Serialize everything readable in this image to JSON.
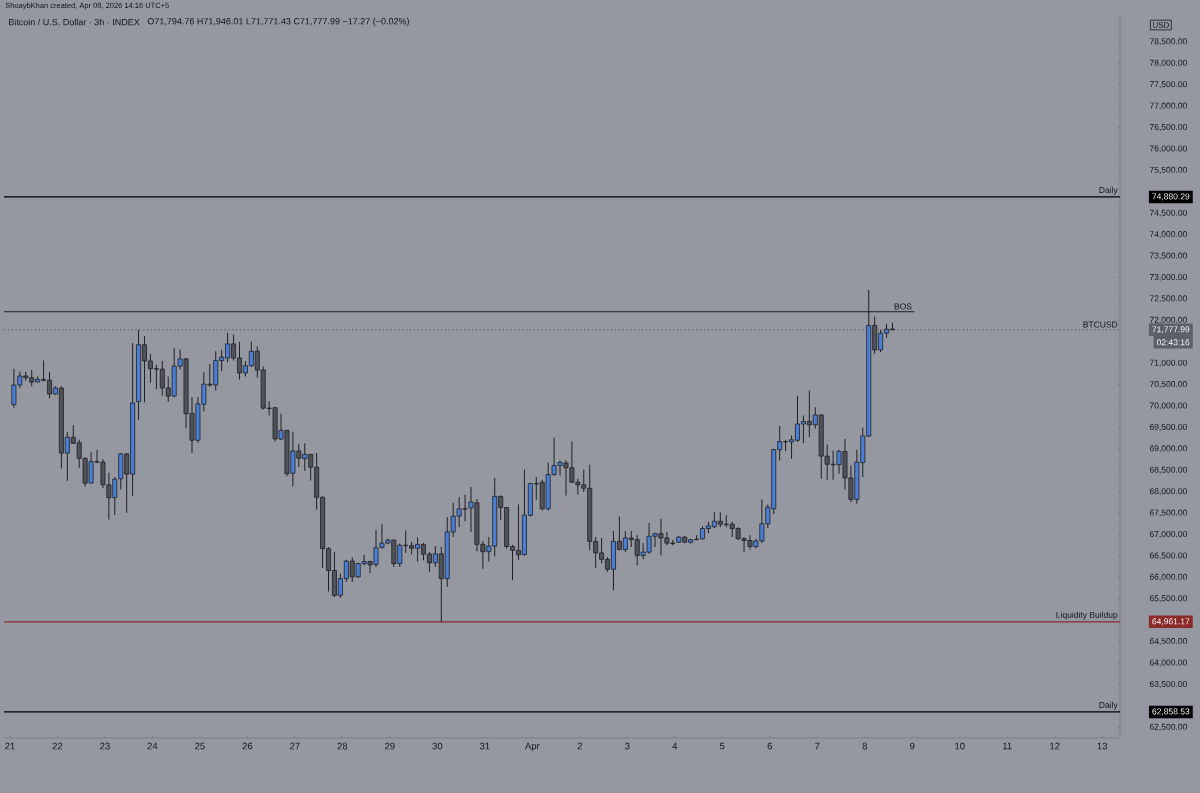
{
  "chart_data": {
    "type": "candlestick",
    "title": "Bitcoin / U.S. Dollar · 3h · INDEX",
    "subtitle": "O71,794.76 H71,946.01 L71,771.43 C71,777.99 −17.27 (−0.02%)",
    "ylabel": "USD",
    "x": [
      "2026-03-21T02:00",
      "2026-03-21T05:00",
      "2026-03-21T08:00",
      "2026-03-21T11:00",
      "2026-03-21T14:00",
      "2026-03-21T17:00",
      "2026-03-21T20:00",
      "2026-03-21T23:00",
      "2026-03-22T02:00",
      "2026-03-22T05:00",
      "2026-03-22T08:00",
      "2026-03-22T11:00",
      "2026-03-22T14:00",
      "2026-03-22T17:00",
      "2026-03-22T20:00",
      "2026-03-22T23:00",
      "2026-03-23T02:00",
      "2026-03-23T05:00",
      "2026-03-23T08:00",
      "2026-03-23T11:00",
      "2026-03-23T14:00",
      "2026-03-23T17:00",
      "2026-03-23T20:00",
      "2026-03-23T23:00",
      "2026-03-24T02:00",
      "2026-03-24T05:00",
      "2026-03-24T08:00",
      "2026-03-24T11:00",
      "2026-03-24T14:00",
      "2026-03-24T17:00",
      "2026-03-24T20:00",
      "2026-03-24T23:00",
      "2026-03-25T02:00",
      "2026-03-25T05:00",
      "2026-03-25T08:00",
      "2026-03-25T11:00",
      "2026-03-25T14:00",
      "2026-03-25T17:00",
      "2026-03-25T20:00",
      "2026-03-25T23:00",
      "2026-03-26T02:00",
      "2026-03-26T05:00",
      "2026-03-26T08:00",
      "2026-03-26T11:00",
      "2026-03-26T14:00",
      "2026-03-26T17:00",
      "2026-03-26T20:00",
      "2026-03-26T23:00",
      "2026-03-27T02:00",
      "2026-03-27T05:00",
      "2026-03-27T08:00",
      "2026-03-27T11:00",
      "2026-03-27T14:00",
      "2026-03-27T17:00",
      "2026-03-27T20:00",
      "2026-03-27T23:00",
      "2026-03-28T02:00",
      "2026-03-28T05:00",
      "2026-03-28T08:00",
      "2026-03-28T11:00",
      "2026-03-28T14:00",
      "2026-03-28T17:00",
      "2026-03-28T20:00",
      "2026-03-28T23:00",
      "2026-03-29T02:00",
      "2026-03-29T05:00",
      "2026-03-29T08:00",
      "2026-03-29T11:00",
      "2026-03-29T14:00",
      "2026-03-29T17:00",
      "2026-03-29T20:00",
      "2026-03-29T23:00",
      "2026-03-30T02:00",
      "2026-03-30T05:00",
      "2026-03-30T08:00",
      "2026-03-30T11:00",
      "2026-03-30T14:00",
      "2026-03-30T17:00",
      "2026-03-30T20:00",
      "2026-03-30T23:00",
      "2026-03-31T02:00",
      "2026-03-31T05:00",
      "2026-03-31T08:00",
      "2026-03-31T11:00",
      "2026-03-31T14:00",
      "2026-03-31T17:00",
      "2026-03-31T20:00",
      "2026-03-31T23:00",
      "2026-04-01T02:00",
      "2026-04-01T05:00",
      "2026-04-01T08:00",
      "2026-04-01T11:00",
      "2026-04-01T14:00",
      "2026-04-01T17:00",
      "2026-04-01T20:00",
      "2026-04-01T23:00",
      "2026-04-02T02:00",
      "2026-04-02T05:00",
      "2026-04-02T08:00",
      "2026-04-02T11:00",
      "2026-04-02T14:00",
      "2026-04-02T17:00",
      "2026-04-02T20:00",
      "2026-04-02T23:00",
      "2026-04-03T02:00",
      "2026-04-03T05:00",
      "2026-04-03T08:00",
      "2026-04-03T11:00",
      "2026-04-03T14:00",
      "2026-04-03T17:00",
      "2026-04-03T20:00",
      "2026-04-03T23:00",
      "2026-04-04T02:00",
      "2026-04-04T05:00",
      "2026-04-04T08:00",
      "2026-04-04T11:00",
      "2026-04-04T14:00",
      "2026-04-04T17:00",
      "2026-04-04T20:00",
      "2026-04-04T23:00",
      "2026-04-05T02:00",
      "2026-04-05T05:00",
      "2026-04-05T08:00",
      "2026-04-05T11:00",
      "2026-04-05T14:00",
      "2026-04-05T17:00",
      "2026-04-05T20:00",
      "2026-04-05T23:00",
      "2026-04-06T02:00",
      "2026-04-06T05:00",
      "2026-04-06T08:00",
      "2026-04-06T11:00",
      "2026-04-06T14:00",
      "2026-04-06T17:00",
      "2026-04-06T20:00",
      "2026-04-06T23:00",
      "2026-04-07T02:00",
      "2026-04-07T05:00",
      "2026-04-07T08:00",
      "2026-04-07T11:00",
      "2026-04-07T14:00",
      "2026-04-07T17:00",
      "2026-04-07T20:00",
      "2026-04-07T23:00",
      "2026-04-08T02:00",
      "2026-04-08T05:00",
      "2026-04-08T08:00",
      "2026-04-08T11:00",
      "2026-04-08T14:00"
    ],
    "ohlc": [
      [
        70030,
        70870,
        69960,
        70490
      ],
      [
        70490,
        70800,
        70420,
        70700
      ],
      [
        70700,
        70800,
        70590,
        70660
      ],
      [
        70660,
        70840,
        70460,
        70560
      ],
      [
        70560,
        70690,
        70550,
        70620
      ],
      [
        70620,
        71060,
        70570,
        70600
      ],
      [
        70600,
        70800,
        70180,
        70280
      ],
      [
        70280,
        70460,
        70260,
        70420
      ],
      [
        70420,
        70460,
        68540,
        68900
      ],
      [
        68900,
        69390,
        68250,
        69270
      ],
      [
        69270,
        69550,
        69120,
        69130
      ],
      [
        69140,
        69210,
        68560,
        68780
      ],
      [
        68780,
        68800,
        68120,
        68200
      ],
      [
        68200,
        68920,
        68190,
        68700
      ],
      [
        68700,
        68980,
        68670,
        68690
      ],
      [
        68690,
        68760,
        68080,
        68160
      ],
      [
        68160,
        68440,
        67350,
        67860
      ],
      [
        67860,
        68340,
        67450,
        68290
      ],
      [
        68300,
        68900,
        68050,
        68880
      ],
      [
        68880,
        68900,
        67510,
        68410
      ],
      [
        68410,
        71470,
        67900,
        70070
      ],
      [
        70100,
        71780,
        69680,
        71430
      ],
      [
        71430,
        71630,
        70090,
        71050
      ],
      [
        71050,
        71220,
        70540,
        70870
      ],
      [
        70870,
        70970,
        70390,
        70860
      ],
      [
        70860,
        71050,
        70240,
        70420
      ],
      [
        70420,
        70690,
        70100,
        70230
      ],
      [
        70230,
        71350,
        70210,
        70930
      ],
      [
        70930,
        71320,
        70850,
        71100
      ],
      [
        71100,
        71120,
        69480,
        69820
      ],
      [
        69830,
        70210,
        68900,
        69200
      ],
      [
        69200,
        70210,
        69140,
        70050
      ],
      [
        70040,
        70790,
        69870,
        70510
      ],
      [
        70510,
        70980,
        70450,
        70490
      ],
      [
        70490,
        71280,
        70360,
        71060
      ],
      [
        71060,
        71310,
        70810,
        71140
      ],
      [
        71120,
        71710,
        71020,
        71450
      ],
      [
        71450,
        71670,
        71060,
        71120
      ],
      [
        71120,
        71500,
        70620,
        70770
      ],
      [
        70770,
        71050,
        70690,
        70940
      ],
      [
        70940,
        71500,
        70910,
        71280
      ],
      [
        71280,
        71390,
        70660,
        70840
      ],
      [
        70840,
        70920,
        69920,
        69950
      ],
      [
        69950,
        70110,
        69780,
        69940
      ],
      [
        69960,
        69970,
        69170,
        69230
      ],
      [
        69230,
        69820,
        69200,
        69430
      ],
      [
        69430,
        69440,
        68360,
        68420
      ],
      [
        68430,
        69400,
        68120,
        68950
      ],
      [
        68950,
        69120,
        68570,
        68780
      ],
      [
        68770,
        69130,
        68480,
        68870
      ],
      [
        68870,
        68880,
        68260,
        68570
      ],
      [
        68570,
        68900,
        67580,
        67870
      ],
      [
        67870,
        67890,
        66220,
        66670
      ],
      [
        66670,
        66710,
        65670,
        66160
      ],
      [
        66160,
        66590,
        65540,
        65580
      ],
      [
        65580,
        66090,
        65520,
        65970
      ],
      [
        65970,
        66410,
        65890,
        66380
      ],
      [
        66380,
        66470,
        65890,
        66010
      ],
      [
        66010,
        66340,
        65990,
        66320
      ],
      [
        66320,
        66530,
        66280,
        66370
      ],
      [
        66370,
        66380,
        66100,
        66290
      ],
      [
        66300,
        67110,
        66240,
        66690
      ],
      [
        66700,
        67240,
        66670,
        66800
      ],
      [
        66800,
        66900,
        66770,
        66870
      ],
      [
        66870,
        66880,
        66240,
        66320
      ],
      [
        66320,
        66790,
        66240,
        66750
      ],
      [
        66750,
        67100,
        66570,
        66740
      ],
      [
        66740,
        66830,
        66540,
        66680
      ],
      [
        66680,
        66930,
        66370,
        66770
      ],
      [
        66770,
        66800,
        66400,
        66540
      ],
      [
        66540,
        66590,
        66130,
        66340
      ],
      [
        66340,
        66730,
        66240,
        66550
      ],
      [
        66550,
        66710,
        64960,
        65970
      ],
      [
        65970,
        67410,
        65780,
        67060
      ],
      [
        67060,
        67740,
        66940,
        67430
      ],
      [
        67430,
        67870,
        67170,
        67600
      ],
      [
        67600,
        67930,
        67310,
        67590
      ],
      [
        67620,
        68110,
        67060,
        67760
      ],
      [
        67740,
        67830,
        66610,
        66770
      ],
      [
        66770,
        66850,
        66200,
        66600
      ],
      [
        66600,
        66940,
        66370,
        66730
      ],
      [
        66730,
        68320,
        66490,
        67890
      ],
      [
        67890,
        67910,
        67340,
        67630
      ],
      [
        67630,
        67640,
        66670,
        66720
      ],
      [
        66720,
        66760,
        65930,
        66630
      ],
      [
        66630,
        67700,
        66400,
        66530
      ],
      [
        66530,
        68510,
        66510,
        67450
      ],
      [
        67450,
        68200,
        67420,
        68190
      ],
      [
        68190,
        68340,
        67810,
        68180
      ],
      [
        68220,
        68280,
        67560,
        67600
      ],
      [
        67600,
        68680,
        67560,
        68400
      ],
      [
        68400,
        69260,
        68370,
        68610
      ],
      [
        68610,
        68730,
        68380,
        68680
      ],
      [
        68670,
        68730,
        67910,
        68560
      ],
      [
        68560,
        69170,
        68200,
        68220
      ],
      [
        68220,
        68300,
        67930,
        68160
      ],
      [
        68160,
        68510,
        67990,
        68080
      ],
      [
        68080,
        68630,
        66630,
        66840
      ],
      [
        66840,
        66940,
        66220,
        66570
      ],
      [
        66570,
        66920,
        66330,
        66420
      ],
      [
        66420,
        66470,
        66130,
        66190
      ],
      [
        66190,
        67080,
        65700,
        66840
      ],
      [
        66840,
        67420,
        66630,
        66650
      ],
      [
        66650,
        67080,
        66590,
        66920
      ],
      [
        66920,
        67080,
        66710,
        66880
      ],
      [
        66880,
        66980,
        66280,
        66510
      ],
      [
        66510,
        66800,
        66420,
        66590
      ],
      [
        66590,
        67270,
        66550,
        66960
      ],
      [
        66960,
        67040,
        66710,
        67020
      ],
      [
        67020,
        67370,
        66510,
        66920
      ],
      [
        66920,
        67060,
        66750,
        66800
      ],
      [
        66800,
        66880,
        66750,
        66790
      ],
      [
        66820,
        66960,
        66800,
        66940
      ],
      [
        66940,
        66960,
        66800,
        66820
      ],
      [
        66820,
        66890,
        66790,
        66880
      ],
      [
        66890,
        66980,
        66870,
        66880
      ],
      [
        66900,
        67190,
        66880,
        67140
      ],
      [
        67140,
        67290,
        67030,
        67200
      ],
      [
        67180,
        67520,
        67150,
        67310
      ],
      [
        67310,
        67520,
        67170,
        67240
      ],
      [
        67240,
        67450,
        67170,
        67230
      ],
      [
        67240,
        67300,
        66940,
        67140
      ],
      [
        67140,
        67170,
        66880,
        66900
      ],
      [
        66900,
        66940,
        66590,
        66860
      ],
      [
        66860,
        66980,
        66650,
        66720
      ],
      [
        66720,
        66900,
        66680,
        66850
      ],
      [
        66850,
        67820,
        66800,
        67250
      ],
      [
        67250,
        67700,
        67150,
        67640
      ],
      [
        67600,
        69000,
        67480,
        68980
      ],
      [
        68980,
        69530,
        68730,
        69170
      ],
      [
        69170,
        69210,
        68950,
        69160
      ],
      [
        69160,
        69310,
        68770,
        69210
      ],
      [
        69200,
        70240,
        69160,
        69580
      ],
      [
        69580,
        69780,
        69130,
        69640
      ],
      [
        69640,
        70360,
        69270,
        69560
      ],
      [
        69560,
        69970,
        69470,
        69790
      ],
      [
        69790,
        69800,
        68300,
        68830
      ],
      [
        68830,
        69100,
        68280,
        68640
      ],
      [
        68640,
        68960,
        68280,
        68630
      ],
      [
        68630,
        68980,
        68420,
        68940
      ],
      [
        68940,
        69230,
        68050,
        68320
      ],
      [
        68320,
        68610,
        67760,
        67820
      ],
      [
        67820,
        68980,
        67720,
        68690
      ],
      [
        68680,
        69500,
        68340,
        69300
      ],
      [
        69300,
        72710,
        69270,
        71880
      ],
      [
        71880,
        72090,
        71220,
        71310
      ],
      [
        71310,
        71780,
        71260,
        71700
      ],
      [
        71700,
        71920,
        71590,
        71790
      ],
      [
        71794.76,
        71946.01,
        71771.43,
        71777.99
      ]
    ],
    "colors": [
      "#4b7fd5",
      "#4b7fd5",
      "#505259",
      "#505259",
      "#4b7fd5",
      "#505259",
      "#505259",
      "#4b7fd5",
      "#505259",
      "#4b7fd5",
      "#505259",
      "#505259",
      "#505259",
      "#4b7fd5",
      "#505259",
      "#505259",
      "#505259",
      "#4b7fd5",
      "#4b7fd5",
      "#505259",
      "#4b7fd5",
      "#4b7fd5",
      "#505259",
      "#505259",
      "#505259",
      "#505259",
      "#505259",
      "#4b7fd5",
      "#4b7fd5",
      "#505259",
      "#505259",
      "#4b7fd5",
      "#4b7fd5",
      "#505259",
      "#4b7fd5",
      "#4b7fd5",
      "#4b7fd5",
      "#505259",
      "#505259",
      "#4b7fd5",
      "#4b7fd5",
      "#505259",
      "#505259",
      "#505259",
      "#505259",
      "#4b7fd5",
      "#505259",
      "#4b7fd5",
      "#505259",
      "#4b7fd5",
      "#505259",
      "#505259",
      "#505259",
      "#505259",
      "#505259",
      "#4b7fd5",
      "#4b7fd5",
      "#505259",
      "#4b7fd5",
      "#4b7fd5",
      "#505259",
      "#4b7fd5",
      "#4b7fd5",
      "#4b7fd5",
      "#505259",
      "#4b7fd5",
      "#505259",
      "#505259",
      "#4b7fd5",
      "#505259",
      "#505259",
      "#4b7fd5",
      "#505259",
      "#4b7fd5",
      "#4b7fd5",
      "#4b7fd5",
      "#505259",
      "#4b7fd5",
      "#505259",
      "#505259",
      "#4b7fd5",
      "#4b7fd5",
      "#505259",
      "#505259",
      "#505259",
      "#505259",
      "#4b7fd5",
      "#4b7fd5",
      "#505259",
      "#505259",
      "#4b7fd5",
      "#4b7fd5",
      "#4b7fd5",
      "#505259",
      "#505259",
      "#505259",
      "#505259",
      "#505259",
      "#505259",
      "#505259",
      "#505259",
      "#4b7fd5",
      "#505259",
      "#4b7fd5",
      "#505259",
      "#505259",
      "#4b7fd5",
      "#4b7fd5",
      "#4b7fd5",
      "#505259",
      "#505259",
      "#505259",
      "#4b7fd5",
      "#505259",
      "#4b7fd5",
      "#505259",
      "#4b7fd5",
      "#4b7fd5",
      "#4b7fd5",
      "#505259",
      "#505259",
      "#505259",
      "#505259",
      "#505259",
      "#505259",
      "#4b7fd5",
      "#4b7fd5",
      "#4b7fd5",
      "#4b7fd5",
      "#4b7fd5",
      "#505259",
      "#4b7fd5",
      "#4b7fd5",
      "#4b7fd5",
      "#505259",
      "#4b7fd5",
      "#505259",
      "#505259",
      "#505259",
      "#4b7fd5",
      "#505259",
      "#505259",
      "#4b7fd5",
      "#4b7fd5",
      "#4b7fd5",
      "#505259",
      "#4b7fd5",
      "#4b7fd5",
      "#505259"
    ],
    "series": [
      {
        "type": "line",
        "name": "BOS",
        "x": [
          "2026-03-20T21:00",
          "2026-04-09T01:00"
        ],
        "values": [
          72200,
          72200
        ],
        "color": "#1e1e1e"
      }
    ],
    "xlim": [
      "2026-03-20T21:00",
      "2026-04-13T09:00"
    ],
    "xticks": [
      {
        "value": "2026-03-21",
        "label": "21"
      },
      {
        "value": "2026-03-22",
        "label": "22"
      },
      {
        "value": "2026-03-23",
        "label": "23"
      },
      {
        "value": "2026-03-24",
        "label": "24"
      },
      {
        "value": "2026-03-25",
        "label": "25"
      },
      {
        "value": "2026-03-26",
        "label": "26"
      },
      {
        "value": "2026-03-27",
        "label": "27"
      },
      {
        "value": "2026-03-28",
        "label": "28"
      },
      {
        "value": "2026-03-29",
        "label": "29"
      },
      {
        "value": "2026-03-30",
        "label": "30"
      },
      {
        "value": "2026-03-31",
        "label": "31"
      },
      {
        "value": "2026-04-01",
        "label": "Apr"
      },
      {
        "value": "2026-04-02",
        "label": "2"
      },
      {
        "value": "2026-04-03",
        "label": "3"
      },
      {
        "value": "2026-04-04",
        "label": "4"
      },
      {
        "value": "2026-04-05",
        "label": "5"
      },
      {
        "value": "2026-04-06",
        "label": "6"
      },
      {
        "value": "2026-04-07",
        "label": "7"
      },
      {
        "value": "2026-04-08",
        "label": "8"
      },
      {
        "value": "2026-04-09",
        "label": "9"
      },
      {
        "value": "2026-04-10",
        "label": "10"
      },
      {
        "value": "2026-04-11",
        "label": "11"
      },
      {
        "value": "2026-04-12",
        "label": "12"
      },
      {
        "value": "2026-04-13",
        "label": "13"
      }
    ],
    "ylim": [
      62250,
      79150
    ],
    "yticks": [
      {
        "value": 62500,
        "label": "62,500.00"
      },
      {
        "value": 63500,
        "label": "63,500.00"
      },
      {
        "value": 64000,
        "label": "64,000.00"
      },
      {
        "value": 64500,
        "label": "64,500.00"
      },
      {
        "value": 65500,
        "label": "65,500.00"
      },
      {
        "value": 66000,
        "label": "66,000.00"
      },
      {
        "value": 66500,
        "label": "66,500.00"
      },
      {
        "value": 67000,
        "label": "67,000.00"
      },
      {
        "value": 67500,
        "label": "67,500.00"
      },
      {
        "value": 68000,
        "label": "68,000.00"
      },
      {
        "value": 68500,
        "label": "68,500.00"
      },
      {
        "value": 69000,
        "label": "69,000.00"
      },
      {
        "value": 69500,
        "label": "69,500.00"
      },
      {
        "value": 70000,
        "label": "70,000.00"
      },
      {
        "value": 70500,
        "label": "70,500.00"
      },
      {
        "value": 71000,
        "label": "71,000.00"
      },
      {
        "value": 72000,
        "label": "72,000.00"
      },
      {
        "value": 72500,
        "label": "72,500.00"
      },
      {
        "value": 73000,
        "label": "73,000.00"
      },
      {
        "value": 73500,
        "label": "73,500.00"
      },
      {
        "value": 74000,
        "label": "74,000.00"
      },
      {
        "value": 74500,
        "label": "74,500.00"
      },
      {
        "value": 75500,
        "label": "75,500.00"
      },
      {
        "value": 76000,
        "label": "76,000.00"
      },
      {
        "value": 76500,
        "label": "76,500.00"
      },
      {
        "value": 77000,
        "label": "77,000.00"
      },
      {
        "value": 77500,
        "label": "77,500.00"
      },
      {
        "value": 78000,
        "label": "78,000.00"
      },
      {
        "value": 78500,
        "label": "78,500.00"
      }
    ],
    "ref_lines": [
      {
        "axis": "y",
        "value": 74880.29,
        "label": "Daily",
        "color": "#000000"
      },
      {
        "axis": "y",
        "value": 71777.99,
        "label": "BTCUSD",
        "color": "#5d606b",
        "line_style": "dotted"
      },
      {
        "axis": "y",
        "value": 64961.17,
        "label": "Liquidity Buildup",
        "color": "#8c2a2a"
      },
      {
        "axis": "y",
        "value": 62858.53,
        "label": "Daily",
        "color": "#000000"
      }
    ],
    "annotations": [
      "ShoaybKhan created, Apr 08, 2026 14:16 UTC+5",
      "74,880.29",
      "71,777.99",
      "02:43:16",
      "64,961.17",
      "62,858.53"
    ]
  }
}
